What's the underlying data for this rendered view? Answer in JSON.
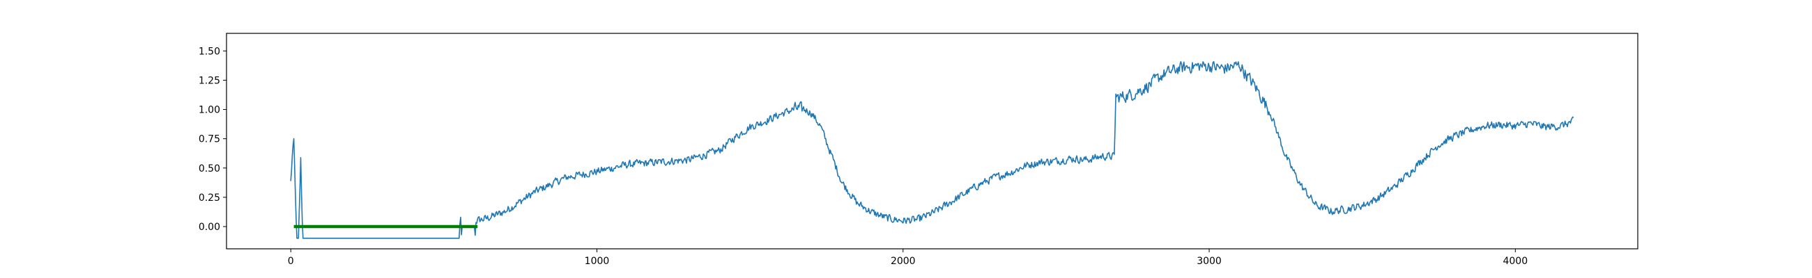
{
  "chart_data": {
    "type": "line",
    "title": "",
    "xlabel": "",
    "ylabel": "",
    "xlim": [
      -210,
      4400
    ],
    "ylim": [
      -0.19,
      1.65
    ],
    "grid": false,
    "x_ticks": [
      {
        "value": 0,
        "label": "0"
      },
      {
        "value": 1000,
        "label": "1000"
      },
      {
        "value": 2000,
        "label": "2000"
      },
      {
        "value": 3000,
        "label": "3000"
      },
      {
        "value": 4000,
        "label": "4000"
      }
    ],
    "y_ticks": [
      {
        "value": 0.0,
        "label": "0.00"
      },
      {
        "value": 0.25,
        "label": "0.25"
      },
      {
        "value": 0.5,
        "label": "0.50"
      },
      {
        "value": 0.75,
        "label": "0.75"
      },
      {
        "value": 1.0,
        "label": "1.00"
      },
      {
        "value": 1.25,
        "label": "1.25"
      },
      {
        "value": 1.5,
        "label": "1.50"
      }
    ],
    "series": [
      {
        "color": "#1f77b4",
        "noise": 0.03,
        "x": [
          0,
          5,
          10,
          12,
          15,
          18,
          20,
          25,
          30,
          32,
          35,
          38,
          40,
          550,
          553,
          555,
          558,
          560,
          600,
          602,
          605,
          640,
          700,
          800,
          900,
          1000,
          1100,
          1200,
          1300,
          1400,
          1450,
          1500,
          1550,
          1600,
          1650,
          1680,
          1700,
          1730,
          1750,
          1800,
          1850,
          1900,
          1950,
          2000,
          2050,
          2100,
          2150,
          2200,
          2250,
          2300,
          2350,
          2400,
          2450,
          2500,
          2550,
          2600,
          2650,
          2690,
          2695,
          2700,
          2750,
          2800,
          2850,
          2900,
          2950,
          3000,
          3050,
          3100,
          3120,
          3150,
          3200,
          3250,
          3300,
          3350,
          3400,
          3450,
          3500,
          3550,
          3600,
          3650,
          3700,
          3750,
          3800,
          3850,
          3900,
          3950,
          4000,
          4050,
          4100,
          4150,
          4190
        ],
        "y": [
          0.38,
          0.6,
          0.73,
          0.55,
          0.3,
          0.0,
          -0.1,
          -0.1,
          0.3,
          0.62,
          0.3,
          -0.02,
          -0.1,
          -0.1,
          0.05,
          0.08,
          -0.1,
          0.0,
          0.0,
          -0.1,
          0.05,
          0.07,
          0.13,
          0.3,
          0.42,
          0.47,
          0.53,
          0.55,
          0.57,
          0.65,
          0.76,
          0.85,
          0.9,
          0.96,
          1.01,
          1.0,
          0.97,
          0.86,
          0.72,
          0.38,
          0.2,
          0.12,
          0.07,
          0.05,
          0.06,
          0.12,
          0.2,
          0.28,
          0.36,
          0.42,
          0.46,
          0.52,
          0.55,
          0.56,
          0.58,
          0.57,
          0.6,
          0.6,
          1.12,
          1.1,
          1.13,
          1.2,
          1.3,
          1.35,
          1.37,
          1.37,
          1.35,
          1.38,
          1.3,
          1.2,
          0.97,
          0.6,
          0.35,
          0.18,
          0.13,
          0.15,
          0.18,
          0.24,
          0.33,
          0.45,
          0.58,
          0.7,
          0.77,
          0.82,
          0.86,
          0.87,
          0.86,
          0.88,
          0.85,
          0.86,
          0.9
        ]
      },
      {
        "color": "#008000",
        "x": [
          10,
          610
        ],
        "y": [
          0.0,
          0.0
        ]
      }
    ]
  }
}
